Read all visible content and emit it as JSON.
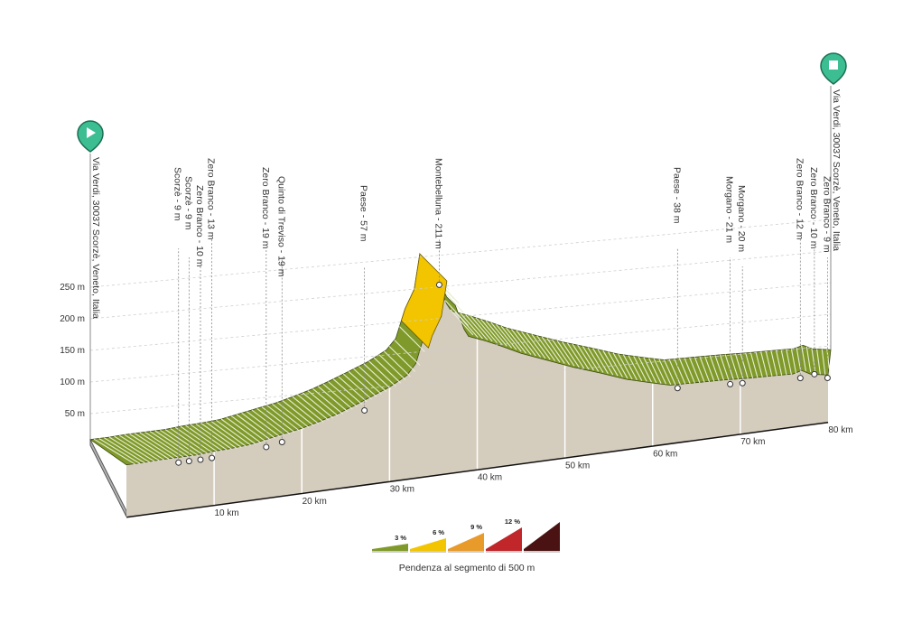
{
  "chart_data": {
    "type": "area",
    "title": "",
    "xlabel": "",
    "ylabel": "",
    "x_unit": "km",
    "y_unit": "m",
    "xlim": [
      0,
      80
    ],
    "ylim": [
      0,
      250
    ],
    "x_ticks": [
      {
        "value": 10,
        "label": "10 km"
      },
      {
        "value": 20,
        "label": "20 km"
      },
      {
        "value": 30,
        "label": "30 km"
      },
      {
        "value": 40,
        "label": "40 km"
      },
      {
        "value": 50,
        "label": "50 km"
      },
      {
        "value": 60,
        "label": "60 km"
      },
      {
        "value": 70,
        "label": "70 km"
      },
      {
        "value": 80,
        "label": "80 km"
      }
    ],
    "y_ticks": [
      {
        "value": 50,
        "label": "50 m"
      },
      {
        "value": 100,
        "label": "100 m"
      },
      {
        "value": 150,
        "label": "150 m"
      },
      {
        "value": 200,
        "label": "200 m"
      },
      {
        "value": 250,
        "label": "250 m"
      }
    ],
    "profile": [
      {
        "km": 0,
        "m": 9
      },
      {
        "km": 2,
        "m": 10
      },
      {
        "km": 4,
        "m": 12
      },
      {
        "km": 6,
        "m": 13
      },
      {
        "km": 8,
        "m": 14
      },
      {
        "km": 10,
        "m": 17
      },
      {
        "km": 12,
        "m": 19
      },
      {
        "km": 14,
        "m": 22
      },
      {
        "km": 16,
        "m": 28
      },
      {
        "km": 18,
        "m": 34
      },
      {
        "km": 20,
        "m": 40
      },
      {
        "km": 22,
        "m": 48
      },
      {
        "km": 24,
        "m": 57
      },
      {
        "km": 26,
        "m": 68
      },
      {
        "km": 28,
        "m": 80
      },
      {
        "km": 30,
        "m": 92
      },
      {
        "km": 32,
        "m": 108
      },
      {
        "km": 33,
        "m": 125
      },
      {
        "km": 34,
        "m": 170
      },
      {
        "km": 35,
        "m": 200
      },
      {
        "km": 35.6,
        "m": 255
      },
      {
        "km": 36.5,
        "m": 226
      },
      {
        "km": 37.5,
        "m": 211
      },
      {
        "km": 38.5,
        "m": 172
      },
      {
        "km": 39,
        "m": 160
      },
      {
        "km": 41,
        "m": 150
      },
      {
        "km": 43,
        "m": 138
      },
      {
        "km": 45,
        "m": 125
      },
      {
        "km": 48,
        "m": 110
      },
      {
        "km": 51,
        "m": 95
      },
      {
        "km": 54,
        "m": 82
      },
      {
        "km": 57,
        "m": 68
      },
      {
        "km": 60,
        "m": 58
      },
      {
        "km": 62,
        "m": 52
      },
      {
        "km": 65,
        "m": 52
      },
      {
        "km": 68,
        "m": 52
      },
      {
        "km": 71,
        "m": 51
      },
      {
        "km": 74,
        "m": 51
      },
      {
        "km": 76,
        "m": 51
      },
      {
        "km": 77,
        "m": 55
      },
      {
        "km": 78,
        "m": 48
      },
      {
        "km": 80,
        "m": 44
      }
    ],
    "steep_segments": [
      {
        "from_km": 33.6,
        "to_km": 35.6,
        "class": "6%"
      }
    ],
    "waypoints": [
      {
        "km": 0,
        "label": "Via Verdi, 30037 Scorzè, Veneto, Italia",
        "type": "start"
      },
      {
        "km": 4.5,
        "label": "Scorzè - 9 m",
        "elev": 9
      },
      {
        "km": 5.7,
        "label": "Scorzè - 9 m",
        "elev": 9
      },
      {
        "km": 7.0,
        "label": "Zero Branco - 10 m",
        "elev": 10
      },
      {
        "km": 8.3,
        "label": "Zero Branco - 13 m",
        "elev": 13
      },
      {
        "km": 14.5,
        "label": "Zero Branco - 19 m",
        "elev": 19
      },
      {
        "km": 16.3,
        "label": "Quinto di Treviso - 19 m",
        "elev": 19
      },
      {
        "km": 25.7,
        "label": "Paese - 57 m",
        "elev": 57
      },
      {
        "km": 37.7,
        "label": "Montebelluna - 211 m",
        "elev": 211
      },
      {
        "km": 61.4,
        "label": "Paese - 38 m",
        "elev": 38
      },
      {
        "km": 67.4,
        "label": "Morgano - 21 m",
        "elev": 21
      },
      {
        "km": 68.8,
        "label": "Morgano - 20 m",
        "elev": 20
      },
      {
        "km": 75.4,
        "label": "Zero Branco - 12 m",
        "elev": 12
      },
      {
        "km": 77.0,
        "label": "Zero Branco - 10 m",
        "elev": 10
      },
      {
        "km": 78.5,
        "label": "Zero Branco - 9 m",
        "elev": 9
      },
      {
        "km": 80,
        "label": "Via Verdi, 30037 Scorzè, Veneto, Italia",
        "type": "end"
      }
    ],
    "legend": {
      "caption": "Pendenza al segmento di 500 m",
      "items": [
        {
          "label": "3 %",
          "color": "#7f9a2a"
        },
        {
          "label": "6 %",
          "color": "#f2c500"
        },
        {
          "label": "9 %",
          "color": "#e89a2a"
        },
        {
          "label": "12 %",
          "color": "#c0262a"
        },
        {
          "label": "",
          "color": "#4a1212"
        }
      ]
    },
    "colors": {
      "green": "#7f9a2a",
      "yellow": "#f2c500",
      "ground": "#d4ccbd",
      "marker": "#3dbd92"
    }
  }
}
